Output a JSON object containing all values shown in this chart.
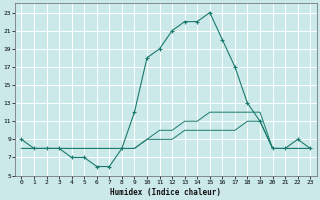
{
  "xlabel": "Humidex (Indice chaleur)",
  "bg_color": "#cce9ea",
  "grid_color": "#ffffff",
  "line_color": "#1a7a6e",
  "xlim": [
    -0.5,
    23.5
  ],
  "ylim": [
    5,
    24
  ],
  "xticks": [
    0,
    1,
    2,
    3,
    4,
    5,
    6,
    7,
    8,
    9,
    10,
    11,
    12,
    13,
    14,
    15,
    16,
    17,
    18,
    19,
    20,
    21,
    22,
    23
  ],
  "yticks": [
    5,
    7,
    9,
    11,
    13,
    15,
    17,
    19,
    21,
    23
  ],
  "series1_x": [
    0,
    1,
    2,
    3,
    4,
    5,
    6,
    7,
    8,
    9,
    10,
    11,
    12,
    13,
    14,
    15,
    16,
    17,
    18,
    19,
    20,
    21,
    22,
    23
  ],
  "series1_y": [
    9,
    8,
    8,
    8,
    7,
    7,
    6,
    6,
    8,
    12,
    18,
    19,
    21,
    22,
    22,
    23,
    20,
    17,
    13,
    11,
    8,
    8,
    9,
    8
  ],
  "series2_x": [
    0,
    2,
    3,
    4,
    5,
    6,
    7,
    8,
    9,
    10,
    11,
    12,
    13,
    14,
    15,
    16,
    17,
    18,
    19,
    20,
    21,
    22,
    23
  ],
  "series2_y": [
    8,
    8,
    8,
    8,
    8,
    8,
    8,
    8,
    8,
    9,
    9,
    9,
    10,
    10,
    10,
    10,
    10,
    11,
    11,
    8,
    8,
    8,
    8
  ],
  "series3_x": [
    0,
    2,
    3,
    4,
    5,
    6,
    7,
    8,
    9,
    10,
    11,
    12,
    13,
    14,
    15,
    16,
    17,
    18,
    19,
    20,
    21,
    22,
    23
  ],
  "series3_y": [
    8,
    8,
    8,
    8,
    8,
    8,
    8,
    8,
    8,
    9,
    10,
    10,
    11,
    11,
    12,
    12,
    12,
    12,
    12,
    8,
    8,
    8,
    8
  ]
}
